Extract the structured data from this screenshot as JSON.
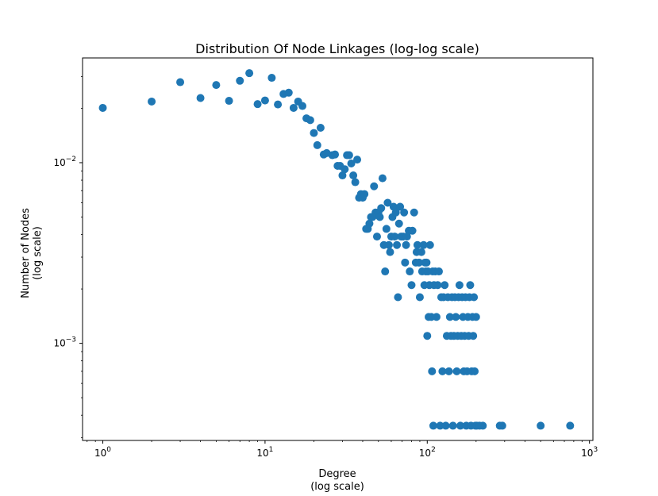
{
  "chart_data": {
    "type": "scatter",
    "title": "Distribution Of Node Linkages (log-log scale)",
    "xlabel": [
      "Degree",
      "(log scale)"
    ],
    "ylabel": [
      "Number of Nodes",
      "(log scale)"
    ],
    "xscale": "log",
    "yscale": "log",
    "xlim": [
      0.75,
      1050
    ],
    "ylim": [
      0.00029,
      0.038
    ],
    "xticks": [
      {
        "value": 1,
        "base": "10",
        "exp": "0"
      },
      {
        "value": 10,
        "base": "10",
        "exp": "1"
      },
      {
        "value": 100,
        "base": "10",
        "exp": "2"
      },
      {
        "value": 1000,
        "base": "10",
        "exp": "3"
      }
    ],
    "yticks": [
      {
        "value": 0.001,
        "base": "10",
        "exp": "−3"
      },
      {
        "value": 0.01,
        "base": "10",
        "exp": "−2"
      }
    ],
    "marker_color": "#1f77b4",
    "grid": false,
    "legend": "none",
    "series": [
      {
        "points": [
          [
            1,
            0.0201
          ],
          [
            2,
            0.0218
          ],
          [
            3,
            0.0279
          ],
          [
            4,
            0.0228
          ],
          [
            5,
            0.0269
          ],
          [
            6,
            0.022
          ],
          [
            7,
            0.0284
          ],
          [
            8,
            0.0313
          ],
          [
            9,
            0.0211
          ],
          [
            10,
            0.0221
          ],
          [
            11,
            0.0295
          ],
          [
            12,
            0.021
          ],
          [
            13,
            0.024
          ],
          [
            14,
            0.0244
          ],
          [
            15,
            0.0201
          ],
          [
            16,
            0.0218
          ],
          [
            17,
            0.0206
          ],
          [
            18,
            0.0176
          ],
          [
            19,
            0.0172
          ],
          [
            20,
            0.0146
          ],
          [
            21,
            0.0125
          ],
          [
            22,
            0.0156
          ],
          [
            23,
            0.0111
          ],
          [
            24,
            0.0113
          ],
          [
            26,
            0.011
          ],
          [
            27,
            0.0111
          ],
          [
            28,
            0.0096
          ],
          [
            29,
            0.0096
          ],
          [
            30,
            0.0085
          ],
          [
            31,
            0.0092
          ],
          [
            32,
            0.011
          ],
          [
            33,
            0.011
          ],
          [
            34,
            0.0099
          ],
          [
            35,
            0.0085
          ],
          [
            36,
            0.0078
          ],
          [
            37,
            0.0104
          ],
          [
            38,
            0.0064
          ],
          [
            39,
            0.0067
          ],
          [
            40,
            0.0064
          ],
          [
            41,
            0.0067
          ],
          [
            42,
            0.0043
          ],
          [
            43,
            0.0043
          ],
          [
            44,
            0.0046
          ],
          [
            45,
            0.005
          ],
          [
            46,
            0.005
          ],
          [
            47,
            0.0074
          ],
          [
            48,
            0.0053
          ],
          [
            49,
            0.0039
          ],
          [
            50,
            0.0053
          ],
          [
            51,
            0.005
          ],
          [
            52,
            0.0056
          ],
          [
            53,
            0.0082
          ],
          [
            54,
            0.0035
          ],
          [
            55,
            0.0025
          ],
          [
            56,
            0.0043
          ],
          [
            57,
            0.006
          ],
          [
            58,
            0.0035
          ],
          [
            59,
            0.0032
          ],
          [
            60,
            0.0039
          ],
          [
            61,
            0.005
          ],
          [
            62,
            0.0057
          ],
          [
            63,
            0.0039
          ],
          [
            64,
            0.0053
          ],
          [
            65,
            0.0035
          ],
          [
            66,
            0.0018
          ],
          [
            67,
            0.0046
          ],
          [
            68,
            0.0057
          ],
          [
            69,
            0.0039
          ],
          [
            71,
            0.0039
          ],
          [
            72,
            0.0053
          ],
          [
            73,
            0.0028
          ],
          [
            74,
            0.0035
          ],
          [
            75,
            0.0039
          ],
          [
            77,
            0.0042
          ],
          [
            78,
            0.0025
          ],
          [
            80,
            0.0021
          ],
          [
            81,
            0.0042
          ],
          [
            83,
            0.0053
          ],
          [
            85,
            0.0028
          ],
          [
            86,
            0.0032
          ],
          [
            87,
            0.0035
          ],
          [
            89,
            0.0028
          ],
          [
            90,
            0.0018
          ],
          [
            92,
            0.0032
          ],
          [
            93,
            0.0025
          ],
          [
            95,
            0.0035
          ],
          [
            96,
            0.0021
          ],
          [
            97,
            0.0028
          ],
          [
            98,
            0.0025
          ],
          [
            99,
            0.0028
          ],
          [
            100,
            0.0011
          ],
          [
            101,
            0.0025
          ],
          [
            102,
            0.0014
          ],
          [
            103,
            0.0021
          ],
          [
            104,
            0.0035
          ],
          [
            106,
            0.0014
          ],
          [
            107,
            0.0007
          ],
          [
            108,
            0.0025
          ],
          [
            109,
            0.00035
          ],
          [
            110,
            0.0021
          ],
          [
            112,
            0.0025
          ],
          [
            114,
            0.0014
          ],
          [
            116,
            0.0021
          ],
          [
            118,
            0.0025
          ],
          [
            120,
            0.00035
          ],
          [
            122,
            0.0018
          ],
          [
            124,
            0.0007
          ],
          [
            126,
            0.0018
          ],
          [
            128,
            0.0021
          ],
          [
            130,
            0.00035
          ],
          [
            132,
            0.0011
          ],
          [
            134,
            0.0018
          ],
          [
            136,
            0.0007
          ],
          [
            138,
            0.0014
          ],
          [
            140,
            0.0011
          ],
          [
            142,
            0.0018
          ],
          [
            144,
            0.00035
          ],
          [
            146,
            0.0011
          ],
          [
            148,
            0.0018
          ],
          [
            150,
            0.0014
          ],
          [
            152,
            0.0007
          ],
          [
            154,
            0.0011
          ],
          [
            156,
            0.0018
          ],
          [
            158,
            0.0021
          ],
          [
            160,
            0.00035
          ],
          [
            162,
            0.0011
          ],
          [
            164,
            0.0018
          ],
          [
            166,
            0.0014
          ],
          [
            168,
            0.0007
          ],
          [
            170,
            0.0011
          ],
          [
            172,
            0.0018
          ],
          [
            174,
            0.00035
          ],
          [
            176,
            0.0007
          ],
          [
            178,
            0.0014
          ],
          [
            180,
            0.0011
          ],
          [
            182,
            0.0018
          ],
          [
            184,
            0.0021
          ],
          [
            186,
            0.00035
          ],
          [
            188,
            0.0007
          ],
          [
            190,
            0.0014
          ],
          [
            192,
            0.0011
          ],
          [
            194,
            0.0018
          ],
          [
            196,
            0.0007
          ],
          [
            198,
            0.00035
          ],
          [
            200,
            0.0014
          ],
          [
            202,
            0.00035
          ],
          [
            210,
            0.00035
          ],
          [
            220,
            0.00035
          ],
          [
            280,
            0.00035
          ],
          [
            290,
            0.00035
          ],
          [
            500,
            0.00035
          ],
          [
            760,
            0.00035
          ]
        ]
      }
    ]
  }
}
